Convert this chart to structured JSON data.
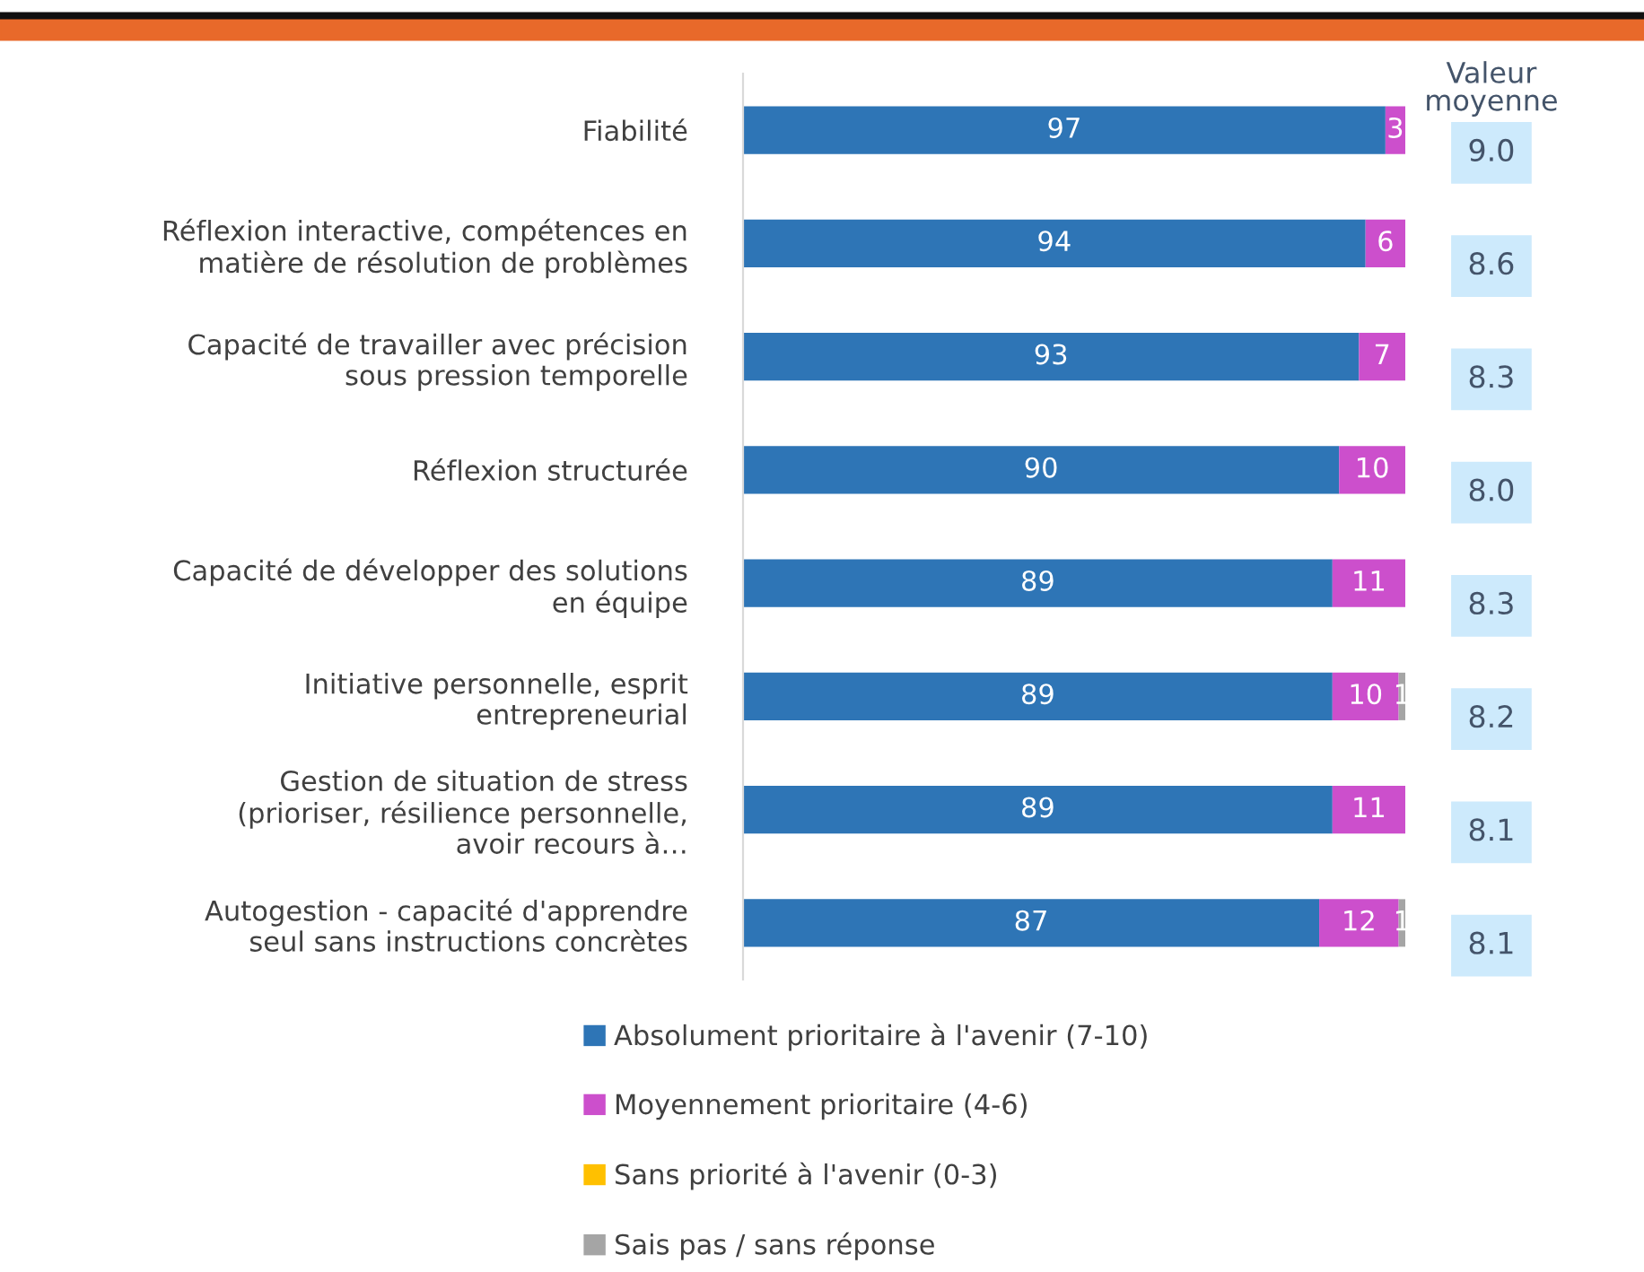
{
  "chart_data": {
    "type": "bar",
    "orientation": "horizontal",
    "stacked": true,
    "data_labels": true,
    "legend": "bottom",
    "grid": false,
    "tick_labels": "y",
    "xlim": [
      0,
      100
    ],
    "categories": [
      "Fiabilité",
      "Réflexion interactive, compétences en matière de résolution de problèmes",
      "Capacité de travailler avec précision sous pression temporelle",
      "Réflexion structurée",
      "Capacité de développer des solutions en équipe",
      "Initiative personnelle, esprit entrepreneurial",
      "Gestion de situation de stress (prioriser, résilience personnelle, avoir recours à…",
      "Autogestion - capacité d'apprendre seul sans instructions concrètes"
    ],
    "series": [
      {
        "name": "Absolument prioritaire à l'avenir (7-10)",
        "color": "#2e75b6",
        "values": [
          97,
          94,
          93,
          90,
          89,
          89,
          89,
          87
        ]
      },
      {
        "name": "Moyennement prioritaire (4-6)",
        "color": "#cc4fcc",
        "values": [
          3,
          6,
          7,
          10,
          11,
          10,
          11,
          12
        ]
      },
      {
        "name": "Sans priorité à l'avenir (0-3)",
        "color": "#ffc000",
        "values": [
          null,
          null,
          null,
          null,
          null,
          null,
          null,
          null
        ]
      },
      {
        "name": "Sais pas / sans réponse",
        "color": "#a5a5a5",
        "values": [
          null,
          null,
          null,
          null,
          null,
          1,
          null,
          1
        ]
      }
    ],
    "annotations": [
      "Valeur moyenne",
      "9.0",
      "8.6",
      "8.3",
      "8.0",
      "8.3",
      "8.2",
      "8.1",
      "8.1"
    ]
  }
}
